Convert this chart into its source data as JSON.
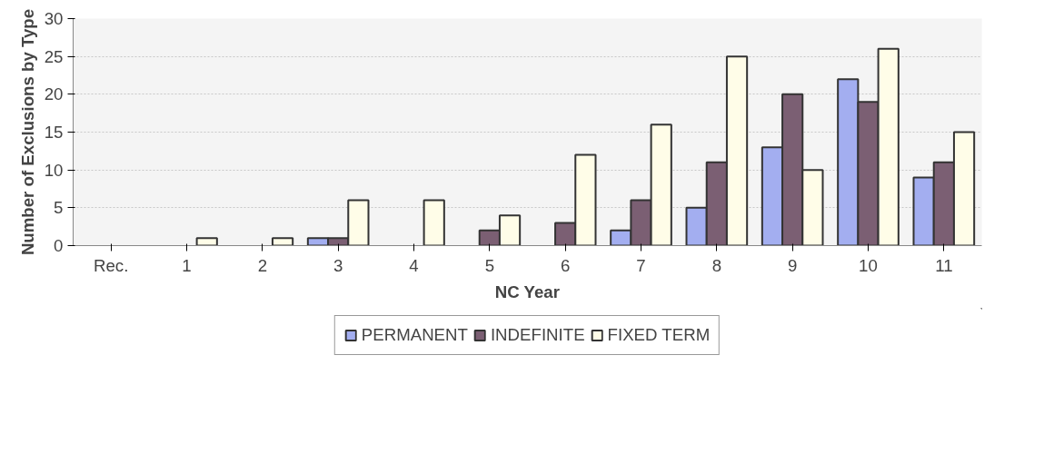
{
  "chart_data": {
    "type": "bar",
    "xlabel": "NC Year",
    "ylabel": "Number of Exclusions by Type",
    "categories": [
      "Rec.",
      "1",
      "2",
      "3",
      "4",
      "5",
      "6",
      "7",
      "8",
      "9",
      "10",
      "11"
    ],
    "series": [
      {
        "name": "PERMANENT",
        "color": "#a3aef0",
        "values": [
          0,
          0,
          0,
          1,
          0,
          0,
          0,
          2,
          5,
          13,
          22,
          9
        ]
      },
      {
        "name": "INDEFINITE",
        "color": "#7b5f73",
        "values": [
          0,
          0,
          0,
          1,
          0,
          2,
          3,
          6,
          11,
          20,
          19,
          11
        ]
      },
      {
        "name": "FIXED TERM",
        "color": "#fffde8",
        "values": [
          0,
          1,
          1,
          6,
          6,
          4,
          12,
          16,
          25,
          10,
          26,
          15
        ]
      }
    ],
    "ylim": [
      0,
      30
    ],
    "yticks": [
      0,
      5,
      10,
      15,
      20,
      25,
      30
    ],
    "grid": "y",
    "legend": "bottom"
  }
}
